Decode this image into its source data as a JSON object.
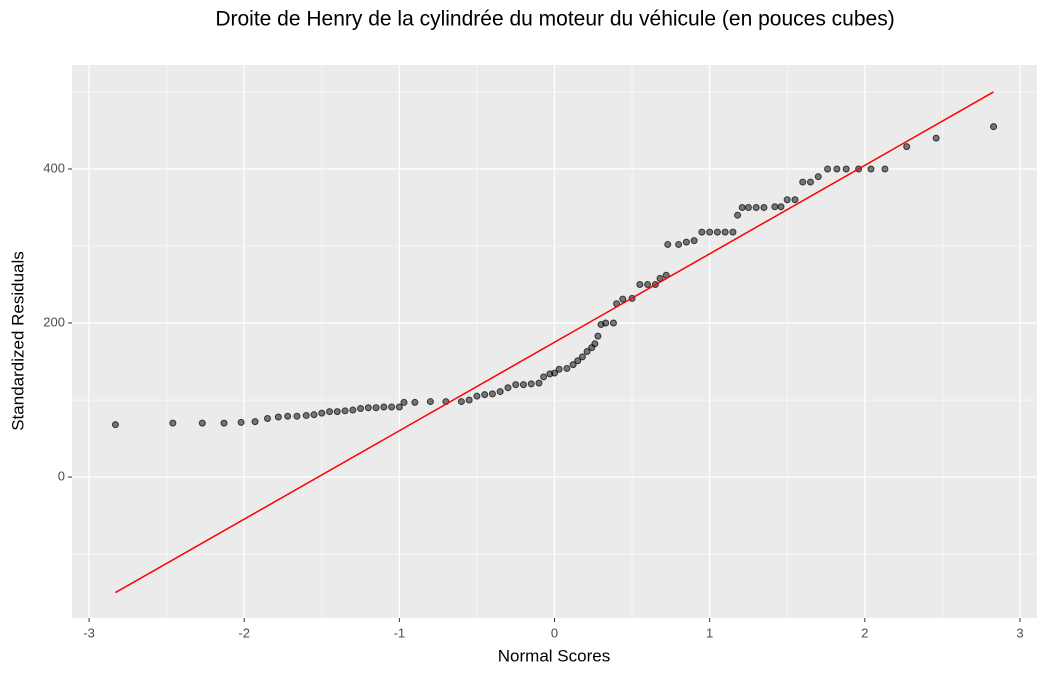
{
  "chart_data": {
    "type": "scatter",
    "title": "Droite de Henry de la cylindrée du moteur du véhicule (en pouces cubes)",
    "x_label": "Normal Scores",
    "y_label": "Standardized Residuals",
    "xlim": [
      -3.11,
      3.11
    ],
    "ylim": [
      -183,
      535
    ],
    "xticks": [
      -3,
      -2,
      -1,
      0,
      1,
      2,
      3
    ],
    "yticks": [
      0,
      200,
      400
    ],
    "grid": true,
    "series": [
      {
        "name": "points",
        "color": "#000000",
        "x": [
          -2.83,
          -2.46,
          -2.27,
          -2.13,
          -2.02,
          -1.93,
          -1.85,
          -1.78,
          -1.72,
          -1.66,
          -1.6,
          -1.55,
          -1.5,
          -1.45,
          -1.4,
          -1.35,
          -1.3,
          -1.25,
          -1.2,
          -1.15,
          -1.1,
          -1.05,
          -1.0,
          -0.97,
          -0.9,
          -0.8,
          -0.7,
          -0.6,
          -0.55,
          -0.5,
          -0.45,
          -0.4,
          -0.35,
          -0.3,
          -0.25,
          -0.2,
          -0.15,
          -0.1,
          -0.07,
          -0.03,
          0.0,
          0.03,
          0.08,
          0.12,
          0.15,
          0.18,
          0.21,
          0.24,
          0.26,
          0.28,
          0.3,
          0.33,
          0.38,
          0.4,
          0.44,
          0.5,
          0.55,
          0.6,
          0.65,
          0.68,
          0.72,
          0.73,
          0.8,
          0.85,
          0.9,
          0.95,
          1.0,
          1.05,
          1.1,
          1.15,
          1.18,
          1.21,
          1.25,
          1.3,
          1.35,
          1.42,
          1.46,
          1.5,
          1.55,
          1.6,
          1.65,
          1.7,
          1.76,
          1.82,
          1.88,
          1.96,
          2.04,
          2.13,
          2.27,
          2.46,
          2.83
        ],
        "values": [
          68,
          70,
          70,
          70,
          71,
          72,
          76,
          78,
          79,
          79,
          80,
          81,
          83,
          85,
          85,
          86,
          87,
          89,
          90,
          90,
          91,
          91,
          91,
          97,
          97,
          98,
          98,
          98,
          100,
          105,
          107,
          108,
          111,
          116,
          120,
          120,
          121,
          122,
          130,
          134,
          135,
          140,
          141,
          146,
          151,
          156,
          163,
          168,
          173,
          183,
          198,
          200,
          200,
          225,
          231,
          232,
          250,
          250,
          250,
          258,
          262,
          302,
          302,
          305,
          307,
          318,
          318,
          318,
          318,
          318,
          340,
          350,
          350,
          350,
          350,
          351,
          351,
          360,
          360,
          383,
          383,
          390,
          400,
          400,
          400,
          400,
          400,
          400,
          429,
          440,
          455
        ]
      }
    ],
    "line": {
      "name": "reference",
      "color": "#ff0000",
      "x": [
        -2.83,
        2.83
      ],
      "values": [
        -150,
        500
      ]
    }
  }
}
